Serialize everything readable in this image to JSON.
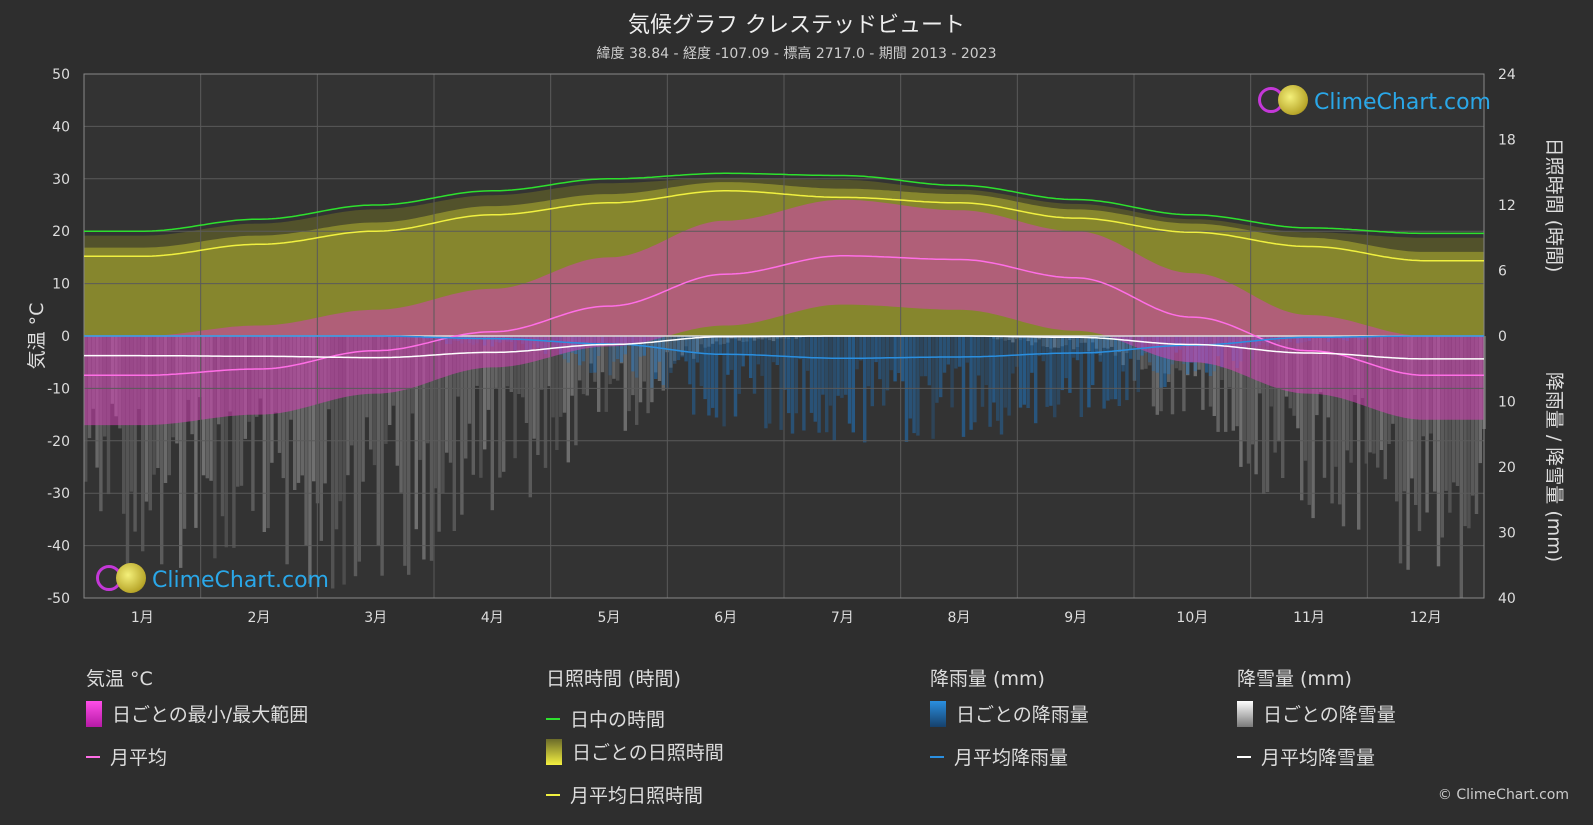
{
  "title": "気候グラフ クレステッドビュート",
  "subtitle": "緯度 38.84 - 経度 -107.09 - 標高 2717.0 - 期間 2013 - 2023",
  "watermark": "ClimeChart.com",
  "copyright": "© ClimeChart.com",
  "legend": {
    "temp": {
      "heading": "気温 °C",
      "range": "日ごとの最小/最大範囲",
      "avg": "月平均"
    },
    "sun": {
      "heading": "日照時間 (時間)",
      "daylight": "日中の時間",
      "daily": "日ごとの日照時間",
      "avg": "月平均日照時間"
    },
    "rain": {
      "heading": "降雨量 (mm)",
      "daily": "日ごとの降雨量",
      "avg": "月平均降雨量"
    },
    "snow": {
      "heading": "降雪量 (mm)",
      "daily": "日ごとの降雪量",
      "avg": "月平均降雪量"
    }
  },
  "colors": {
    "background": "#2e2e2e",
    "temp_range": "#d43fb6",
    "temp_avg": "#ff6ee6",
    "daylight": "#2ee02e",
    "sunshine_fill": "#8f8f2e",
    "sunshine_avg": "#f0f040",
    "rain": "#1e78c8",
    "rain_avg": "#2a8fe0",
    "snow": "#9a9a9a",
    "snow_avg": "#ffffff"
  },
  "chart_data": {
    "type": "area",
    "categories": [
      "1月",
      "2月",
      "3月",
      "4月",
      "5月",
      "6月",
      "7月",
      "8月",
      "9月",
      "10月",
      "11月",
      "12月"
    ],
    "axes": {
      "left": {
        "label": "気温 °C",
        "range": [
          -50,
          50
        ],
        "ticks": [
          "50",
          "40",
          "30",
          "20",
          "10",
          "0",
          "-10",
          "-20",
          "-30",
          "-40",
          "-50"
        ]
      },
      "right_top": {
        "label": "日照時間 (時間)",
        "range": [
          0,
          24
        ],
        "ticks": [
          "24",
          "18",
          "12",
          "6",
          "0"
        ]
      },
      "right_bottom": {
        "label": "降雨量 / 降雪量 (mm)",
        "range": [
          0,
          40
        ],
        "ticks": [
          "10",
          "20",
          "30",
          "40"
        ]
      }
    },
    "grid": true,
    "series": [
      {
        "name": "日中の時間",
        "unit": "hours",
        "values": [
          9.6,
          10.7,
          12.0,
          13.3,
          14.4,
          14.9,
          14.7,
          13.8,
          12.5,
          11.1,
          9.9,
          9.4
        ]
      },
      {
        "name": "月平均日照時間",
        "unit": "hours",
        "values": [
          7.3,
          8.4,
          9.6,
          11.1,
          12.2,
          13.3,
          12.7,
          12.2,
          10.8,
          9.5,
          8.2,
          6.9
        ]
      },
      {
        "name": "月平均",
        "unit": "°C",
        "values": [
          -7.5,
          -6.3,
          -2.8,
          0.8,
          5.7,
          11.8,
          15.3,
          14.6,
          11.1,
          3.6,
          -2.8,
          -7.5
        ]
      },
      {
        "name": "daily_max_temp",
        "unit": "°C",
        "values": [
          0,
          2,
          5,
          9,
          15,
          22,
          26,
          24,
          20,
          12,
          4,
          0
        ]
      },
      {
        "name": "daily_min_temp",
        "unit": "°C",
        "values": [
          -17,
          -15,
          -11,
          -6,
          -2,
          2,
          6,
          5,
          1,
          -5,
          -11,
          -16
        ]
      },
      {
        "name": "月平均降雨量",
        "unit": "mm",
        "values": [
          0.0,
          0.0,
          0.0,
          0.4,
          1.2,
          2.8,
          3.4,
          3.2,
          2.6,
          1.4,
          0.2,
          0.0
        ]
      },
      {
        "name": "月平均降雪量",
        "unit": "mm",
        "values": [
          3.0,
          3.1,
          3.3,
          2.5,
          1.3,
          0.1,
          0.0,
          0.0,
          0.2,
          1.3,
          2.6,
          3.5
        ]
      }
    ]
  }
}
